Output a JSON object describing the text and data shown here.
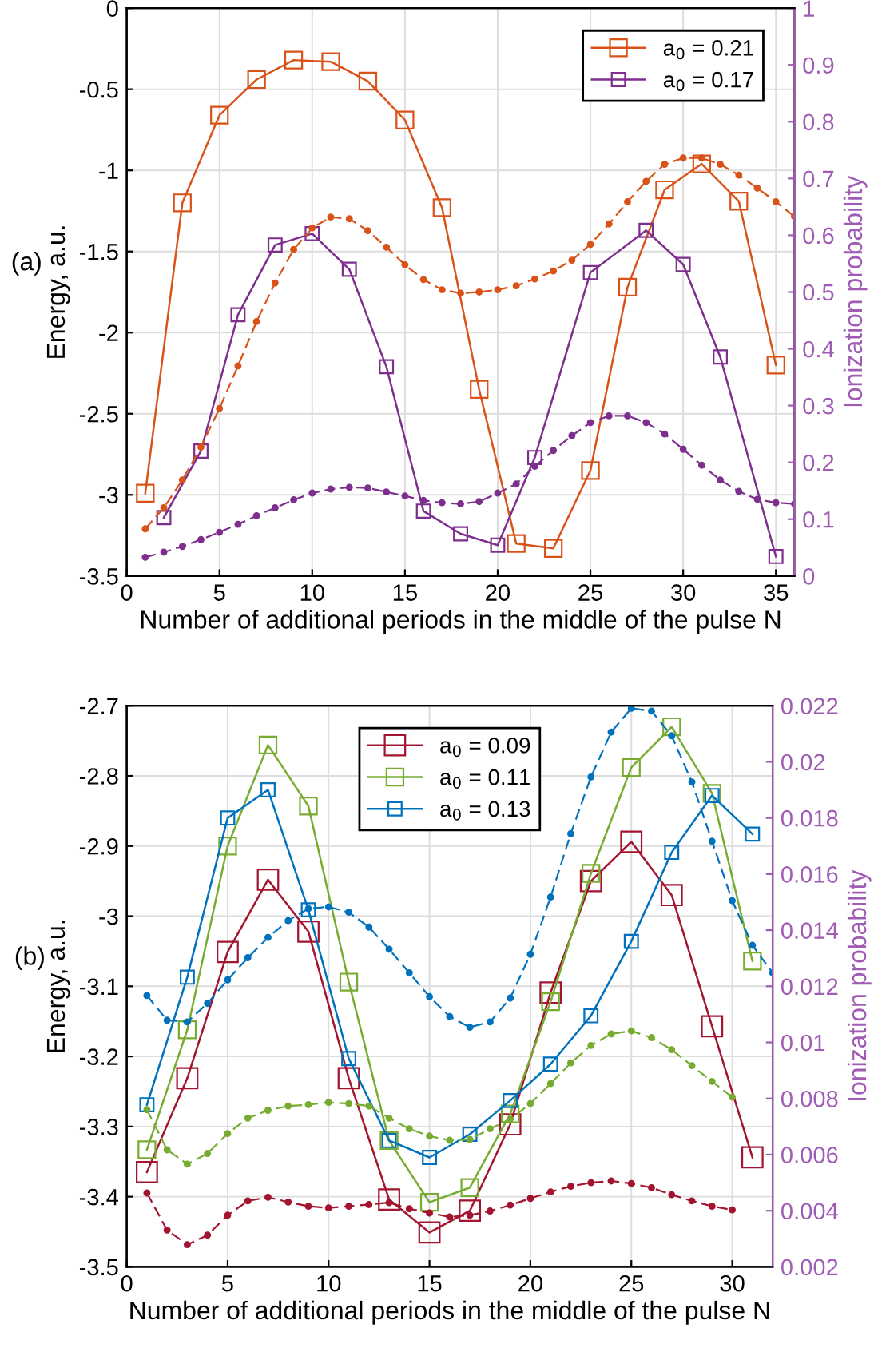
{
  "chart_data": [
    {
      "type": "line",
      "xlabel": "Number of additional periods in the middle of the pulse N",
      "ylabel": "Energy, a.u.",
      "y2label": "Ionization probability",
      "annotations": [
        "(a)"
      ],
      "xlim": [
        0,
        36
      ],
      "xticks": [
        0,
        5,
        10,
        15,
        20,
        25,
        30,
        35
      ],
      "ylim": [
        -3.5,
        0
      ],
      "yticks": [
        -3.5,
        -3,
        -2.5,
        -2,
        -1.5,
        -1,
        -0.5,
        0
      ],
      "y2lim": [
        0,
        1
      ],
      "y2ticks": [
        0,
        0.1,
        0.2,
        0.3,
        0.4,
        0.5,
        0.6,
        0.7,
        0.8,
        0.9,
        1
      ],
      "grid": true,
      "legend": "top right",
      "series": [
        {
          "name": "a$_{0}$ = 0.21",
          "color": "#d95319",
          "marker": "square",
          "line_style": "solid",
          "x": [
            1,
            3,
            5,
            7,
            9,
            11,
            13,
            15,
            17,
            19,
            21,
            23,
            25,
            27,
            29,
            31,
            33,
            35
          ],
          "values": [
            -2.99,
            -1.2,
            -0.66,
            -0.44,
            -0.32,
            -0.33,
            -0.45,
            -0.69,
            -1.23,
            -2.35,
            -3.3,
            -3.33,
            -2.85,
            -1.72,
            -1.12,
            -0.96,
            -1.19,
            -2.2
          ]
        },
        {
          "name": "a$_{0}$ = 0.17",
          "color": "#7e2f8e",
          "marker": "square",
          "line_style": "solid",
          "x": [
            2,
            4,
            6,
            8,
            10,
            12,
            14,
            16,
            18,
            20,
            22,
            25,
            28,
            30,
            32,
            35
          ],
          "values": [
            -3.14,
            -2.73,
            -1.89,
            -1.46,
            -1.39,
            -1.61,
            -2.21,
            -3.1,
            -3.24,
            -3.31,
            -2.77,
            -1.63,
            -1.37,
            -1.58,
            -2.15,
            -3.38
          ]
        },
        {
          "color": "#d95319",
          "marker": "circle",
          "line_style": "dashed",
          "axis": "y2",
          "x": [
            1,
            2,
            3,
            4,
            5,
            6,
            7,
            8,
            9,
            10,
            11,
            12,
            13,
            14,
            15,
            16,
            17,
            18,
            19,
            20,
            21,
            22,
            23,
            24,
            25,
            26,
            27,
            28,
            29,
            30,
            31,
            32,
            33,
            34,
            35,
            36
          ],
          "values": [
            0.083,
            0.12,
            0.169,
            0.227,
            0.295,
            0.37,
            0.448,
            0.516,
            0.575,
            0.613,
            0.632,
            0.629,
            0.608,
            0.579,
            0.548,
            0.522,
            0.504,
            0.498,
            0.5,
            0.504,
            0.511,
            0.523,
            0.537,
            0.556,
            0.584,
            0.62,
            0.659,
            0.695,
            0.725,
            0.736,
            0.736,
            0.725,
            0.706,
            0.683,
            0.659,
            0.633
          ]
        },
        {
          "color": "#7e2f8e",
          "marker": "circle",
          "line_style": "dashed",
          "axis": "y2",
          "x": [
            1,
            2,
            3,
            4,
            5,
            6,
            7,
            8,
            9,
            10,
            11,
            12,
            13,
            14,
            15,
            16,
            17,
            18,
            19,
            20,
            21,
            22,
            23,
            24,
            25,
            26,
            27,
            28,
            29,
            30,
            31,
            32,
            33,
            34,
            35,
            36
          ],
          "values": [
            0.033,
            0.042,
            0.052,
            0.064,
            0.077,
            0.091,
            0.106,
            0.12,
            0.134,
            0.146,
            0.153,
            0.156,
            0.155,
            0.148,
            0.141,
            0.133,
            0.129,
            0.127,
            0.131,
            0.146,
            0.162,
            0.193,
            0.221,
            0.247,
            0.27,
            0.282,
            0.282,
            0.27,
            0.25,
            0.223,
            0.195,
            0.169,
            0.149,
            0.135,
            0.129,
            0.127
          ]
        }
      ]
    },
    {
      "type": "line",
      "xlabel": "Number of additional periods in the middle of the pulse N",
      "ylabel": "Energy, a.u.",
      "y2label": "Ionization probability",
      "annotations": [
        "(b)"
      ],
      "xlim": [
        0,
        32
      ],
      "xticks": [
        0,
        5,
        10,
        15,
        20,
        25,
        30
      ],
      "ylim": [
        -3.5,
        -2.7
      ],
      "yticks": [
        -3.5,
        -3.4,
        -3.3,
        -3.2,
        -3.1,
        -3,
        -2.9,
        -2.8,
        -2.7
      ],
      "y2lim": [
        0.002,
        0.022
      ],
      "y2ticks": [
        0.002,
        0.004,
        0.006,
        0.008,
        0.01,
        0.012,
        0.014,
        0.016,
        0.018,
        0.02,
        0.022
      ],
      "grid": true,
      "legend": "top",
      "series": [
        {
          "name": "a$_{0}$ = 0.09",
          "color": "#a2142f",
          "marker": "square",
          "line_style": "solid",
          "x": [
            1,
            3,
            5,
            7,
            9,
            11,
            13,
            15,
            17,
            19,
            21,
            23,
            25,
            27,
            29,
            31
          ],
          "values": [
            -3.365,
            -3.231,
            -3.051,
            -2.948,
            -3.022,
            -3.231,
            -3.404,
            -3.451,
            -3.42,
            -3.297,
            -3.109,
            -2.95,
            -2.894,
            -2.97,
            -3.157,
            -3.344
          ]
        },
        {
          "name": "a$_{0}$ = 0.11",
          "color": "#77ac30",
          "marker": "square",
          "line_style": "solid",
          "x": [
            1,
            3,
            5,
            7,
            9,
            11,
            13,
            15,
            17,
            19,
            21,
            23,
            25,
            27,
            29,
            31
          ],
          "values": [
            -3.333,
            -3.162,
            -2.9,
            -2.756,
            -2.843,
            -3.094,
            -3.32,
            -3.408,
            -3.387,
            -3.282,
            -3.122,
            -2.939,
            -2.788,
            -2.73,
            -2.825,
            -3.064
          ]
        },
        {
          "name": "a$_{0}$ = 0.13",
          "color": "#0072bd",
          "marker": "square",
          "line_style": "solid",
          "x": [
            1,
            3,
            5,
            7,
            9,
            11,
            13,
            15,
            17,
            19,
            21,
            23,
            25,
            27,
            29,
            31
          ],
          "values": [
            -3.269,
            -3.087,
            -2.86,
            -2.82,
            -2.991,
            -3.203,
            -3.32,
            -3.344,
            -3.311,
            -3.263,
            -3.211,
            -3.142,
            -3.036,
            -2.909,
            -2.828,
            -2.883
          ]
        },
        {
          "color": "#a2142f",
          "marker": "circle",
          "line_style": "dashed",
          "axis": "y2",
          "x": [
            1,
            2,
            3,
            4,
            5,
            6,
            7,
            8,
            9,
            10,
            11,
            12,
            13,
            14,
            15,
            16,
            17,
            18,
            19,
            20,
            21,
            22,
            23,
            24,
            25,
            26,
            27,
            28,
            29,
            30
          ],
          "values": [
            0.00463,
            0.00331,
            0.00279,
            0.00313,
            0.00384,
            0.00435,
            0.00448,
            0.00431,
            0.00416,
            0.0041,
            0.00416,
            0.00422,
            0.00429,
            0.00407,
            0.00392,
            0.00378,
            0.00384,
            0.00399,
            0.0042,
            0.00444,
            0.00467,
            0.00487,
            0.005,
            0.00506,
            0.00497,
            0.00482,
            0.00457,
            0.00435,
            0.00416,
            0.00403
          ]
        },
        {
          "color": "#77ac30",
          "marker": "circle",
          "line_style": "dashed",
          "axis": "y2",
          "x": [
            1,
            2,
            3,
            4,
            5,
            6,
            7,
            8,
            9,
            10,
            11,
            12,
            13,
            14,
            15,
            16,
            17,
            18,
            19,
            20,
            21,
            22,
            23,
            24,
            25,
            26,
            27,
            28,
            29,
            30
          ],
          "values": [
            0.0076,
            0.00617,
            0.00566,
            0.00604,
            0.00675,
            0.0073,
            0.00758,
            0.00773,
            0.00778,
            0.00786,
            0.00782,
            0.00773,
            0.0073,
            0.00692,
            0.00666,
            0.00651,
            0.00654,
            0.00692,
            0.00726,
            0.00782,
            0.00853,
            0.00927,
            0.00989,
            0.0103,
            0.01041,
            0.01017,
            0.00974,
            0.00917,
            0.00861,
            0.00805
          ]
        },
        {
          "color": "#0072bd",
          "marker": "circle",
          "line_style": "dashed",
          "axis": "y2",
          "x": [
            1,
            2,
            3,
            4,
            5,
            6,
            7,
            8,
            9,
            10,
            11,
            12,
            13,
            14,
            15,
            16,
            17,
            18,
            19,
            20,
            21,
            22,
            23,
            24,
            25,
            26,
            27,
            28,
            29,
            30,
            31,
            32
          ],
          "values": [
            0.01167,
            0.01079,
            0.01073,
            0.01139,
            0.01223,
            0.01302,
            0.01374,
            0.01434,
            0.01477,
            0.01483,
            0.01464,
            0.01411,
            0.01332,
            0.01248,
            0.01163,
            0.01092,
            0.01054,
            0.01073,
            0.01158,
            0.01314,
            0.01518,
            0.01744,
            0.01946,
            0.02106,
            0.02191,
            0.02181,
            0.02093,
            0.01928,
            0.01717,
            0.01505,
            0.01346,
            0.01248
          ]
        }
      ]
    }
  ]
}
